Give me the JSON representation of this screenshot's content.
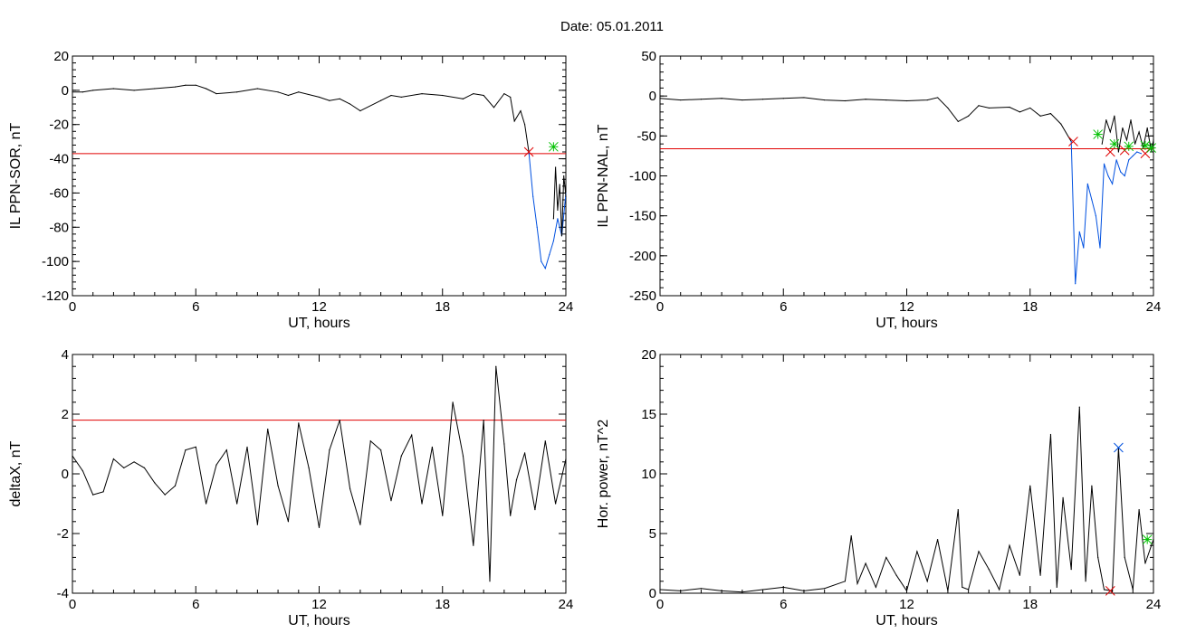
{
  "figure": {
    "title": "Date:  05.01.2011"
  },
  "colors": {
    "trace": "#000000",
    "threshold": "#e00000",
    "highlight": "#0050e0",
    "marker_red": "#e00000",
    "marker_green": "#00c000",
    "marker_blue": "#0050e0"
  },
  "chart_data": [
    {
      "id": "p1",
      "type": "line",
      "ylabel": "IL PPN-SOR, nT",
      "xlabel": "UT, hours",
      "xlim": [
        0,
        24
      ],
      "ylim": [
        -120,
        20
      ],
      "xticks": [
        0,
        6,
        12,
        18,
        24
      ],
      "yticks": [
        20,
        0,
        -20,
        -40,
        -60,
        -80,
        -100,
        -120
      ],
      "threshold": -37,
      "series": [
        {
          "x": [
            0,
            0.5,
            1,
            2,
            3,
            4,
            5,
            5.5,
            6,
            6.5,
            7,
            8,
            9,
            10,
            10.5,
            11,
            12,
            12.5,
            13,
            13.5,
            14,
            15,
            15.5,
            16,
            17,
            18,
            19,
            19.5,
            20,
            20.5,
            21,
            21.3,
            21.5,
            21.8,
            22,
            22.2
          ],
          "y": [
            -1,
            -1,
            0,
            1,
            0,
            1,
            2,
            3,
            3,
            1,
            -2,
            -1,
            1,
            -1,
            -3,
            -1,
            -4,
            -6,
            -5,
            -8,
            -12,
            -6,
            -3,
            -4,
            -2,
            -3,
            -5,
            -2,
            -3,
            -10,
            -2,
            -4,
            -18,
            -12,
            -20,
            -36
          ]
        },
        {
          "x": [
            22.2,
            22.4,
            22.6,
            22.8,
            23.0,
            23.2,
            23.4,
            23.6,
            23.8,
            24
          ],
          "y": [
            -36,
            -62,
            -80,
            -100,
            -104,
            -96,
            -88,
            -75,
            -85,
            -60
          ]
        },
        {
          "x": [
            23.4,
            23.5,
            23.6,
            23.7,
            23.8,
            23.9,
            24
          ],
          "y": [
            -75,
            -45,
            -70,
            -55,
            -85,
            -50,
            -62
          ]
        }
      ],
      "markers": [
        {
          "x": 22.2,
          "y": -36,
          "symbol": "x",
          "color": "red"
        },
        {
          "x": 23.4,
          "y": -33,
          "symbol": "*",
          "color": "green"
        }
      ]
    },
    {
      "id": "p2",
      "type": "line",
      "ylabel": "IL PPN-NAL, nT",
      "xlabel": "UT, hours",
      "xlim": [
        0,
        24
      ],
      "ylim": [
        -250,
        50
      ],
      "xticks": [
        0,
        6,
        12,
        18,
        24
      ],
      "yticks": [
        50,
        0,
        -50,
        -100,
        -150,
        -200,
        -250
      ],
      "threshold": -66,
      "series": [
        {
          "x": [
            0,
            1,
            2,
            3,
            4,
            5,
            6,
            7,
            8,
            9,
            10,
            11,
            12,
            13,
            13.5,
            14,
            14.5,
            15,
            15.5,
            16,
            17,
            17.5,
            18,
            18.5,
            19,
            19.5,
            20
          ],
          "y": [
            -3,
            -5,
            -4,
            -3,
            -5,
            -4,
            -3,
            -2,
            -5,
            -6,
            -4,
            -5,
            -6,
            -5,
            -2,
            -15,
            -32,
            -25,
            -12,
            -15,
            -14,
            -20,
            -15,
            -25,
            -22,
            -35,
            -57
          ]
        },
        {
          "x": [
            20,
            20.2,
            20.4,
            20.6,
            20.8,
            21,
            21.2,
            21.4,
            21.6,
            21.8,
            22,
            22.2,
            22.4,
            22.6,
            22.8,
            23,
            23.2,
            23.4
          ],
          "y": [
            -57,
            -235,
            -170,
            -190,
            -110,
            -130,
            -150,
            -190,
            -85,
            -100,
            -110,
            -80,
            -95,
            -100,
            -80,
            -75,
            -70,
            -72
          ]
        },
        {
          "x": [
            21.5,
            21.7,
            21.9,
            22.1,
            22.3,
            22.5,
            22.7,
            22.9,
            23.1,
            23.3,
            23.5,
            23.7,
            23.9,
            24
          ],
          "y": [
            -60,
            -30,
            -45,
            -25,
            -70,
            -40,
            -55,
            -30,
            -60,
            -45,
            -65,
            -40,
            -70,
            -55
          ]
        }
      ],
      "markers": [
        {
          "x": 20.1,
          "y": -57,
          "symbol": "x",
          "color": "red"
        },
        {
          "x": 21.9,
          "y": -70,
          "symbol": "x",
          "color": "red"
        },
        {
          "x": 22.6,
          "y": -68,
          "symbol": "x",
          "color": "red"
        },
        {
          "x": 23.6,
          "y": -72,
          "symbol": "x",
          "color": "red"
        },
        {
          "x": 21.3,
          "y": -48,
          "symbol": "*",
          "color": "green"
        },
        {
          "x": 22.1,
          "y": -60,
          "symbol": "*",
          "color": "green"
        },
        {
          "x": 22.8,
          "y": -63,
          "symbol": "*",
          "color": "green"
        },
        {
          "x": 23.6,
          "y": -62,
          "symbol": "*",
          "color": "green"
        },
        {
          "x": 23.9,
          "y": -65,
          "symbol": "*",
          "color": "green"
        }
      ]
    },
    {
      "id": "p3",
      "type": "line",
      "ylabel": "deltaX, nT",
      "xlabel": "UT, hours",
      "xlim": [
        0,
        24
      ],
      "ylim": [
        -4,
        4
      ],
      "xticks": [
        0,
        6,
        12,
        18,
        24
      ],
      "yticks": [
        4,
        2,
        0,
        -2,
        -4
      ],
      "threshold": 1.8,
      "series": [
        {
          "x": [
            0,
            0.5,
            1,
            1.5,
            2,
            2.5,
            3,
            3.5,
            4,
            4.5,
            5,
            5.5,
            6,
            6.5,
            7,
            7.5,
            8,
            8.5,
            9,
            9.5,
            10,
            10.5,
            11,
            11.5,
            12,
            12.5,
            13,
            13.5,
            14,
            14.5,
            15,
            15.5,
            16,
            16.5,
            17,
            17.5,
            18,
            18.5,
            19,
            19.5,
            20,
            20.3,
            20.6,
            21,
            21.3,
            21.6,
            22,
            22.5,
            23,
            23.5,
            24
          ],
          "y": [
            0.6,
            0.1,
            -0.7,
            -0.6,
            0.5,
            0.2,
            0.4,
            0.2,
            -0.3,
            -0.7,
            -0.4,
            0.8,
            0.9,
            -1.0,
            0.3,
            0.8,
            -1.0,
            0.9,
            -1.7,
            1.5,
            -0.4,
            -1.6,
            1.7,
            0.2,
            -1.8,
            0.8,
            1.8,
            -0.5,
            -1.7,
            1.1,
            0.8,
            -0.9,
            0.6,
            1.3,
            -1.0,
            0.9,
            -1.4,
            2.4,
            0.6,
            -2.4,
            1.8,
            -3.6,
            3.6,
            1.0,
            -1.4,
            -0.2,
            0.7,
            -1.2,
            1.1,
            -1.0,
            0.5
          ]
        }
      ],
      "markers": []
    },
    {
      "id": "p4",
      "type": "line",
      "ylabel": "Hor. power, nT^2",
      "xlabel": "UT, hours",
      "xlim": [
        0,
        24
      ],
      "ylim": [
        0,
        20
      ],
      "xticks": [
        0,
        6,
        12,
        18,
        24
      ],
      "yticks": [
        20,
        15,
        10,
        5,
        0
      ],
      "threshold": null,
      "series": [
        {
          "x": [
            0,
            1,
            2,
            3,
            4,
            5,
            6,
            7,
            8,
            9,
            9.3,
            9.6,
            10,
            10.5,
            11,
            11.5,
            12,
            12.5,
            13,
            13.5,
            14,
            14.5,
            14.7,
            15,
            15.5,
            16,
            16.5,
            17,
            17.5,
            18,
            18.5,
            19,
            19.3,
            19.6,
            20,
            20.4,
            20.7,
            21,
            21.3,
            21.6,
            22,
            22.3,
            22.6,
            23,
            23.3,
            23.6,
            24
          ],
          "y": [
            0.3,
            0.2,
            0.4,
            0.2,
            0.1,
            0.3,
            0.5,
            0.2,
            0.4,
            1.0,
            4.8,
            0.8,
            2.5,
            0.5,
            3.0,
            1.5,
            0.2,
            3.5,
            1.0,
            4.5,
            0.2,
            7.0,
            0.5,
            0.3,
            3.5,
            2.0,
            0.3,
            4.0,
            1.5,
            9.0,
            1.5,
            13.3,
            0.5,
            8.0,
            2.0,
            15.6,
            1.0,
            9.0,
            3.0,
            0.3,
            0.2,
            12.2,
            3.0,
            0.3,
            7.0,
            2.5,
            4.5
          ]
        }
      ],
      "markers": [
        {
          "x": 22.3,
          "y": 12.2,
          "symbol": "x",
          "color": "blue"
        },
        {
          "x": 21.9,
          "y": 0.2,
          "symbol": "x",
          "color": "red"
        },
        {
          "x": 23.7,
          "y": 4.5,
          "symbol": "*",
          "color": "green"
        }
      ]
    }
  ]
}
